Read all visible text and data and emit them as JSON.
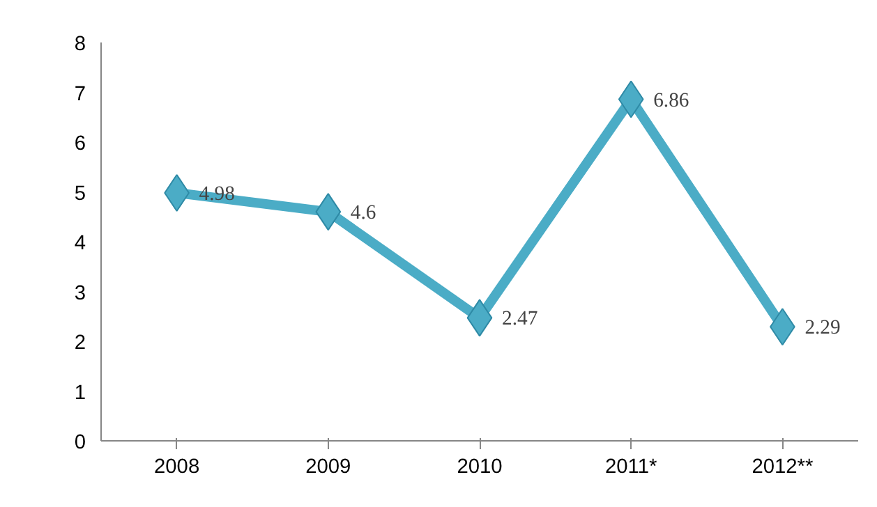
{
  "chart_data": {
    "type": "line",
    "categories": [
      "2008",
      "2009",
      "2010",
      "2011*",
      "2012**"
    ],
    "series": [
      {
        "color": "#4bacc6",
        "values": [
          4.98,
          4.6,
          2.47,
          6.86,
          2.29
        ]
      }
    ],
    "ylim": [
      0,
      8
    ],
    "yticks": [
      0,
      1,
      2,
      3,
      4,
      5,
      6,
      7,
      8
    ],
    "grid": false,
    "marker": "diamond",
    "line_style": "solid",
    "data_labels": true
  }
}
